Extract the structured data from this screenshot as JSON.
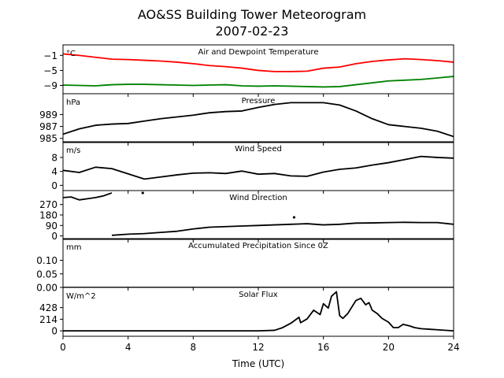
{
  "chart_data": {
    "type": "line",
    "title": "AO&SS Building Tower Meteorogram",
    "subtitle": "2007-02-23",
    "xlabel": "Time (UTC)",
    "xlim": [
      0,
      24
    ],
    "xticks": [
      "0",
      "4",
      "8",
      "12",
      "16",
      "20",
      "24"
    ],
    "panels": [
      {
        "key": "temp",
        "title": "Air and Dewpoint Temperature",
        "unit": "°C",
        "ylim": [
          -11.2,
          1.8
        ],
        "yticks": [
          -1,
          -5,
          -9
        ],
        "ytick_labels": [
          "−1",
          "−5",
          "−9"
        ],
        "series": [
          {
            "color": "#ff0000",
            "x": [
              0,
              1,
              2,
              3,
              4,
              5,
              6,
              7,
              8,
              9,
              10,
              11,
              12,
              13,
              14,
              15,
              16,
              17,
              18,
              19,
              20,
              21,
              22,
              23,
              24
            ],
            "values": [
              -0.6,
              -1.0,
              -1.5,
              -2.0,
              -2.1,
              -2.3,
              -2.5,
              -2.8,
              -3.2,
              -3.7,
              -4.0,
              -4.4,
              -5.0,
              -5.3,
              -5.3,
              -5.2,
              -4.4,
              -4.1,
              -3.2,
              -2.6,
              -2.2,
              -1.9,
              -2.1,
              -2.4,
              -2.8
            ]
          },
          {
            "color": "#008000",
            "x": [
              0,
              1,
              2,
              3,
              4,
              5,
              6,
              7,
              8,
              9,
              10,
              11,
              12,
              13,
              14,
              15,
              16,
              17,
              18,
              19,
              20,
              21,
              22,
              23,
              24
            ],
            "values": [
              -8.9,
              -9.0,
              -9.1,
              -8.8,
              -8.7,
              -8.7,
              -8.8,
              -8.9,
              -9.0,
              -8.9,
              -8.8,
              -9.1,
              -9.2,
              -9.1,
              -9.2,
              -9.3,
              -9.4,
              -9.3,
              -8.8,
              -8.3,
              -7.8,
              -7.6,
              -7.4,
              -7.0,
              -6.6
            ]
          }
        ]
      },
      {
        "key": "pressure",
        "title": "Pressure",
        "unit": "hPa",
        "ylim": [
          984.3,
          992.5
        ],
        "yticks": [
          989,
          987,
          985
        ],
        "ytick_labels": [
          "989",
          "987",
          "985"
        ],
        "series": [
          {
            "color": "#000000",
            "x": [
              0,
              1,
              2,
              3,
              4,
              5,
              6,
              7,
              8,
              9,
              10,
              11,
              12,
              13,
              14,
              15,
              16,
              17,
              18,
              19,
              20,
              21,
              22,
              23,
              24
            ],
            "values": [
              985.7,
              986.6,
              987.2,
              987.4,
              987.5,
              987.9,
              988.3,
              988.6,
              988.9,
              989.3,
              989.5,
              989.6,
              990.2,
              990.7,
              991.0,
              991.0,
              991.0,
              990.6,
              989.6,
              988.3,
              987.3,
              987.0,
              986.7,
              986.2,
              985.3
            ]
          }
        ]
      },
      {
        "key": "wind_speed",
        "title": "Wind Speed",
        "unit": "m/s",
        "ylim": [
          -1.5,
          12.5
        ],
        "yticks": [
          8,
          4,
          0
        ],
        "ytick_labels": [
          "8",
          "4",
          "0"
        ],
        "series": [
          {
            "color": "#000000",
            "x": [
              0,
              1,
              2,
              3,
              4,
              5,
              6,
              7,
              8,
              9,
              10,
              11,
              12,
              13,
              14,
              15,
              16,
              17,
              18,
              19,
              20,
              21,
              22,
              23,
              24
            ],
            "values": [
              4.3,
              3.7,
              5.2,
              4.8,
              3.3,
              1.8,
              2.4,
              3.0,
              3.5,
              3.6,
              3.4,
              4.1,
              3.2,
              3.4,
              2.7,
              2.6,
              3.8,
              4.6,
              5.0,
              5.8,
              6.5,
              7.4,
              8.3,
              8.0,
              7.8
            ]
          }
        ]
      },
      {
        "key": "wind_dir",
        "title": "Wind Direction",
        "unit": "",
        "ylim": [
          -30,
          390
        ],
        "yticks": [
          270,
          180,
          90,
          0
        ],
        "ytick_labels": [
          "270",
          "180",
          "90",
          "0"
        ],
        "series": [
          {
            "color": "#000000",
            "x": [
              0,
              0.5,
              1.0,
              1.5,
              2.0,
              2.5,
              3.0
            ],
            "values": [
              330,
              335,
              310,
              320,
              330,
              345,
              370
            ]
          },
          {
            "color": "#000000",
            "x": [
              3,
              4,
              5,
              6,
              7,
              8,
              9,
              10,
              11,
              12,
              13,
              14,
              15,
              16,
              17,
              18,
              19,
              20,
              21,
              22,
              23,
              24
            ],
            "values": [
              5,
              15,
              20,
              30,
              40,
              60,
              75,
              80,
              85,
              90,
              95,
              100,
              105,
              95,
              100,
              110,
              112,
              115,
              117,
              115,
              115,
              100
            ]
          }
        ],
        "points": [
          {
            "x": 4.9,
            "value": 370
          },
          {
            "x": 14.2,
            "value": 160
          }
        ]
      },
      {
        "key": "precip",
        "title": "Accumulated Precipitation Since 0Z",
        "unit": "mm",
        "ylim": [
          0,
          0.18
        ],
        "yticks": [
          0.1,
          0.05,
          0.0
        ],
        "ytick_labels": [
          "0.10",
          "0.05",
          "0.00"
        ],
        "series": [
          {
            "color": "#000000",
            "x": [
              0,
              24
            ],
            "values": [
              0,
              0
            ]
          }
        ]
      },
      {
        "key": "solar",
        "title": "Solar Flux",
        "unit": "W/m^2",
        "ylim": [
          -100,
          800
        ],
        "yticks": [
          428,
          214,
          0
        ],
        "ytick_labels": [
          "428",
          "214",
          "0"
        ],
        "series": [
          {
            "color": "#000000",
            "x": [
              0,
              6,
              12,
              13,
              13.5,
              14,
              14.5,
              14.6,
              15,
              15.4,
              15.8,
              16,
              16.3,
              16.5,
              16.8,
              17,
              17.2,
              17.5,
              18,
              18.3,
              18.6,
              18.8,
              19,
              19.3,
              19.6,
              20,
              20.3,
              20.6,
              20.9,
              21.3,
              21.6,
              22,
              22.5,
              23,
              24
            ],
            "values": [
              0,
              0,
              0,
              10,
              60,
              140,
              250,
              150,
              220,
              380,
              300,
              500,
              420,
              640,
              720,
              280,
              230,
              320,
              560,
              600,
              480,
              520,
              380,
              320,
              230,
              160,
              60,
              60,
              120,
              90,
              60,
              40,
              30,
              20,
              0
            ]
          }
        ]
      }
    ]
  }
}
